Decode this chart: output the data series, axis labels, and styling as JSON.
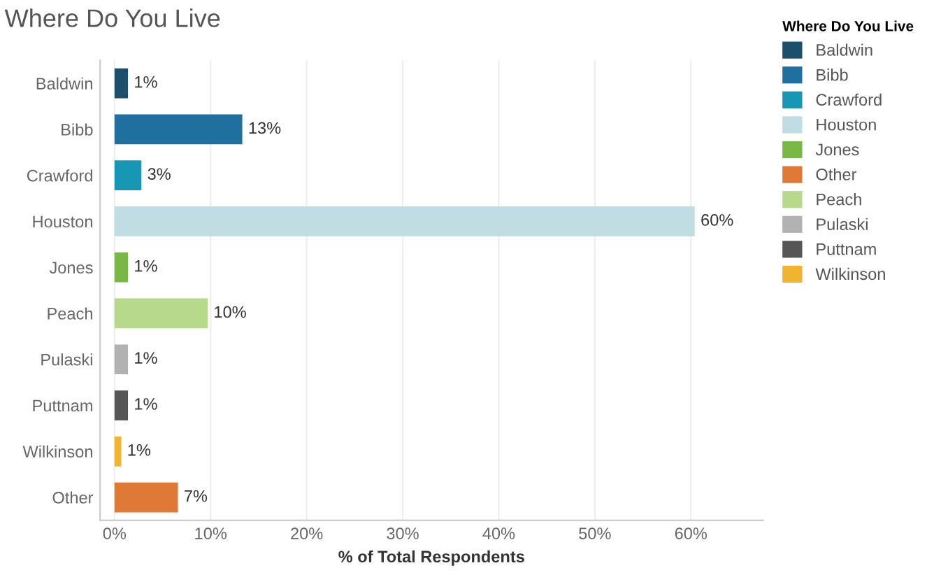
{
  "chart_data": {
    "type": "bar",
    "orientation": "horizontal",
    "title": "Where Do You Live",
    "xlabel": "% of Total Respondents",
    "legend_title": "Where Do You Live",
    "categories": [
      "Baldwin",
      "Bibb",
      "Crawford",
      "Houston",
      "Jones",
      "Peach",
      "Pulaski",
      "Puttnam",
      "Wilkinson",
      "Other"
    ],
    "series": [
      {
        "name": "Baldwin",
        "color": "#1b4f6b",
        "values": [
          1.4,
          null,
          null,
          null,
          null,
          null,
          null,
          null,
          null,
          null
        ],
        "value_labels": [
          "1%",
          null,
          null,
          null,
          null,
          null,
          null,
          null,
          null,
          null
        ]
      },
      {
        "name": "Bibb",
        "color": "#1f6f9f",
        "values": [
          null,
          13.3,
          null,
          null,
          null,
          null,
          null,
          null,
          null,
          null
        ],
        "value_labels": [
          null,
          "13%",
          null,
          null,
          null,
          null,
          null,
          null,
          null,
          null
        ]
      },
      {
        "name": "Crawford",
        "color": "#1797b3",
        "values": [
          null,
          null,
          2.8,
          null,
          null,
          null,
          null,
          null,
          null,
          null
        ],
        "value_labels": [
          null,
          null,
          "3%",
          null,
          null,
          null,
          null,
          null,
          null,
          null
        ]
      },
      {
        "name": "Houston",
        "color": "#bfdde3",
        "values": [
          null,
          null,
          null,
          60.4,
          null,
          null,
          null,
          null,
          null,
          null
        ],
        "value_labels": [
          null,
          null,
          null,
          "60%",
          null,
          null,
          null,
          null,
          null,
          null
        ]
      },
      {
        "name": "Jones",
        "color": "#79b747",
        "values": [
          null,
          null,
          null,
          null,
          1.4,
          null,
          null,
          null,
          null,
          null
        ],
        "value_labels": [
          null,
          null,
          null,
          null,
          "1%",
          null,
          null,
          null,
          null,
          null
        ]
      },
      {
        "name": "Other",
        "color": "#de7a35",
        "values": [
          null,
          null,
          null,
          null,
          null,
          null,
          null,
          null,
          null,
          6.6
        ],
        "value_labels": [
          null,
          null,
          null,
          null,
          null,
          null,
          null,
          null,
          null,
          "7%"
        ]
      },
      {
        "name": "Peach",
        "color": "#b6d98b",
        "values": [
          null,
          null,
          null,
          null,
          null,
          9.7,
          null,
          null,
          null,
          null
        ],
        "value_labels": [
          null,
          null,
          null,
          null,
          null,
          "10%",
          null,
          null,
          null,
          null
        ]
      },
      {
        "name": "Pulaski",
        "color": "#b2b2b2",
        "values": [
          null,
          null,
          null,
          null,
          null,
          null,
          1.4,
          null,
          null,
          null
        ],
        "value_labels": [
          null,
          null,
          null,
          null,
          null,
          null,
          "1%",
          null,
          null,
          null
        ]
      },
      {
        "name": "Puttnam",
        "color": "#565656",
        "values": [
          null,
          null,
          null,
          null,
          null,
          null,
          null,
          1.4,
          null,
          null
        ],
        "value_labels": [
          null,
          null,
          null,
          null,
          null,
          null,
          null,
          "1%",
          null,
          null
        ]
      },
      {
        "name": "Wilkinson",
        "color": "#f0b431",
        "values": [
          null,
          null,
          null,
          null,
          null,
          null,
          null,
          null,
          0.7,
          null
        ],
        "value_labels": [
          null,
          null,
          null,
          null,
          null,
          null,
          null,
          null,
          "1%",
          null
        ]
      }
    ],
    "xlim": [
      -1.5,
      67.5
    ],
    "xticks": [
      {
        "value": 0,
        "label": "0%"
      },
      {
        "value": 10,
        "label": "10%"
      },
      {
        "value": 20,
        "label": "20%"
      },
      {
        "value": 30,
        "label": "30%"
      },
      {
        "value": 40,
        "label": "40%"
      },
      {
        "value": 50,
        "label": "50%"
      },
      {
        "value": 60,
        "label": "60%"
      }
    ],
    "grid": "x",
    "legend": "top right"
  }
}
